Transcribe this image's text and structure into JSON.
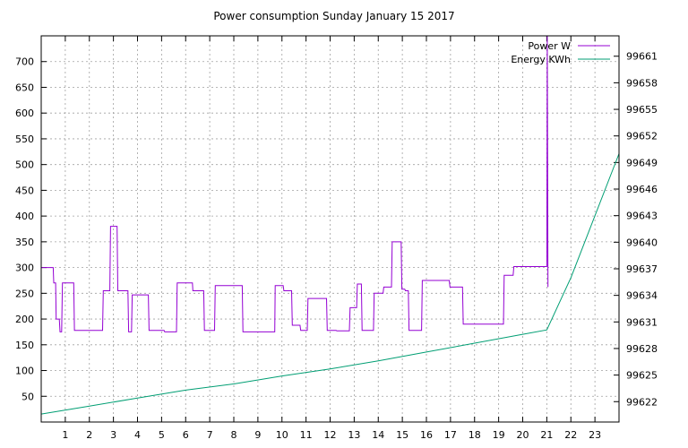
{
  "chart_data": {
    "type": "line",
    "title": "Power consumption Sunday January 15 2017",
    "x_ticks": [
      1,
      2,
      3,
      4,
      5,
      6,
      7,
      8,
      9,
      10,
      11,
      12,
      13,
      14,
      15,
      16,
      17,
      18,
      19,
      20,
      21,
      22,
      23
    ],
    "xlim": [
      0,
      24
    ],
    "y_left": {
      "ticks": [
        50,
        100,
        150,
        200,
        250,
        300,
        350,
        400,
        450,
        500,
        550,
        600,
        650,
        700
      ],
      "range": [
        0,
        750
      ]
    },
    "y_right": {
      "ticks": [
        99622,
        99625,
        99628,
        99631,
        99634,
        99637,
        99640,
        99643,
        99646,
        99649,
        99652,
        99655,
        99658,
        99661
      ],
      "range": [
        99619.7,
        99663.3
      ]
    },
    "grid": true,
    "legend_position": "top-right",
    "series": [
      {
        "name": "Power W",
        "axis": "left",
        "color": "#9400d3",
        "x": [
          0,
          0.5,
          0.52,
          0.6,
          0.62,
          0.75,
          0.78,
          0.85,
          0.88,
          1.35,
          1.38,
          2.55,
          2.58,
          2.85,
          2.88,
          3.15,
          3.18,
          3.6,
          3.63,
          3.75,
          3.78,
          4.45,
          4.48,
          5.1,
          5.13,
          5.62,
          5.65,
          6.28,
          6.3,
          6.75,
          6.78,
          7.2,
          7.23,
          8.35,
          8.38,
          9.7,
          9.72,
          10.05,
          10.08,
          10.4,
          10.43,
          10.75,
          10.78,
          11.05,
          11.08,
          11.85,
          11.88,
          12.25,
          12.28,
          12.8,
          12.83,
          13.1,
          13.13,
          13.3,
          13.33,
          13.8,
          13.83,
          14.2,
          14.23,
          14.55,
          14.58,
          14.95,
          14.98,
          15.1,
          15.13,
          15.25,
          15.28,
          15.4,
          15.43,
          15.8,
          15.83,
          16.95,
          16.98,
          17.5,
          17.53,
          17.8,
          17.83,
          19.2,
          19.23,
          19.6,
          19.63,
          21.0,
          21.02,
          21.05
        ],
        "y": [
          300,
          300,
          270,
          270,
          200,
          200,
          175,
          175,
          270,
          270,
          178,
          178,
          255,
          255,
          380,
          380,
          255,
          255,
          175,
          175,
          247,
          247,
          178,
          178,
          175,
          175,
          270,
          270,
          255,
          255,
          178,
          178,
          265,
          265,
          175,
          175,
          265,
          265,
          255,
          255,
          188,
          188,
          178,
          178,
          240,
          240,
          178,
          178,
          177,
          177,
          222,
          222,
          268,
          268,
          178,
          178,
          250,
          250,
          262,
          262,
          350,
          350,
          258,
          258,
          255,
          255,
          178,
          178,
          178,
          178,
          275,
          275,
          262,
          262,
          190,
          190,
          190,
          190,
          285,
          285,
          302,
          302,
          750,
          262
        ]
      },
      {
        "name": "Energy KWh",
        "axis": "right",
        "color": "#009e73",
        "x": [
          0,
          2,
          4,
          6,
          8,
          10,
          12,
          14,
          16,
          18,
          20,
          21,
          22,
          24
        ],
        "y": [
          99620.6,
          99621.5,
          99622.4,
          99623.3,
          99624.0,
          99624.9,
          99625.7,
          99626.6,
          99627.6,
          99628.6,
          99629.6,
          99630.1,
          99636.0,
          99650.0
        ]
      }
    ]
  }
}
